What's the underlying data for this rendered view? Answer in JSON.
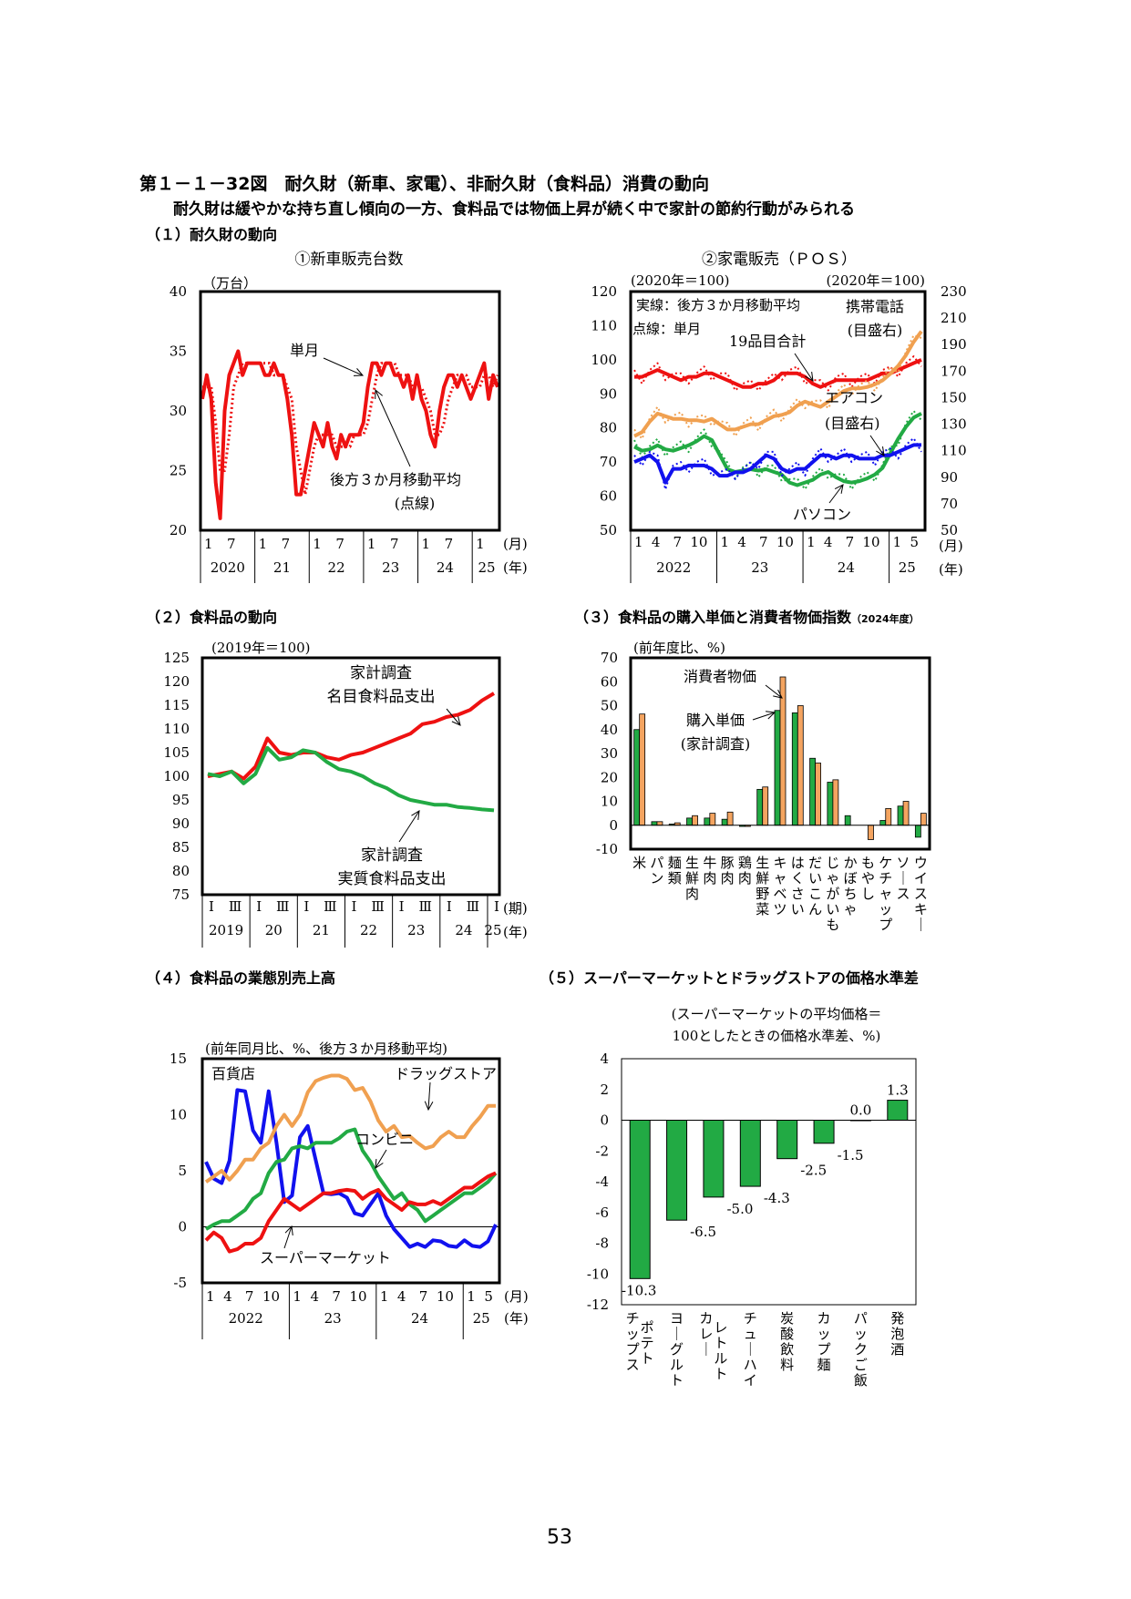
{
  "header": {
    "title": "第１－１－32図　耐久財（新車、家電）、非耐久財（食料品）消費の動向",
    "subtitle": "耐久財は緩やかな持ち直し傾向の一方、食料品では物価上昇が続く中で家計の節約行動がみられる",
    "sec1": "（１）耐久財の動向",
    "sec2": "（２）食料品の動向",
    "sec3": "（３）食料品の購入単価と消費者物価指数",
    "sec3_note": "（2024年度）",
    "sec4": "（４）食料品の業態別売上高",
    "sec5": "（５）スーパーマーケットとドラッグストアの価格水準差"
  },
  "page_number": "53",
  "chart_data": [
    {
      "id": "new-car-sales",
      "type": "line",
      "title": "①新車販売台数",
      "unit": "（万台）",
      "ylim": [
        20,
        40
      ],
      "yticks": [
        20,
        25,
        30,
        35,
        40
      ],
      "month_labels": [
        "1",
        "7",
        "1",
        "7",
        "1",
        "7",
        "1",
        "7",
        "1",
        "7",
        "1"
      ],
      "year_labels": [
        "2020",
        "21",
        "22",
        "23",
        "24",
        "25"
      ],
      "month_unit": "(月)",
      "year_unit": "(年)",
      "annotations": [
        "単月",
        "後方３か月移動平均",
        "(点線)"
      ],
      "series": [
        {
          "color": "#ee1111",
          "style": "solid",
          "values": [
            31,
            33,
            31,
            24,
            21,
            30,
            33,
            34,
            35,
            33,
            34,
            34,
            34,
            34,
            33,
            33,
            34,
            33,
            33,
            31,
            28,
            23,
            23,
            25,
            27,
            29,
            28,
            27,
            29,
            27,
            26,
            28,
            27,
            28,
            28,
            28,
            29,
            32,
            34,
            34,
            33,
            34,
            34,
            33,
            33,
            32,
            33,
            31,
            33,
            31,
            30,
            28,
            27,
            30,
            32,
            33,
            33,
            32,
            33,
            32,
            31,
            32,
            33,
            34,
            31,
            33,
            32
          ]
        },
        {
          "color": "#ee1111",
          "style": "dotted",
          "values": [
            32,
            32,
            32,
            29,
            25,
            25,
            28,
            32,
            33,
            34,
            34,
            34,
            34,
            34,
            34,
            34,
            33,
            33,
            33,
            32,
            31,
            27,
            25,
            23,
            25,
            27,
            28,
            28,
            28,
            28,
            27,
            27,
            27,
            27,
            28,
            28,
            28,
            29,
            31,
            33,
            34,
            34,
            34,
            34,
            33,
            33,
            33,
            32,
            32,
            32,
            31,
            30,
            28,
            28,
            29,
            31,
            32,
            33,
            33,
            33,
            32,
            32,
            32,
            33,
            33,
            32,
            33
          ]
        }
      ]
    },
    {
      "id": "appliance-sales",
      "type": "line",
      "title": "②家電販売（ＰＯＳ）",
      "left_unit": "(2020年＝100)",
      "right_unit": "(2020年＝100)",
      "ylim": [
        50,
        120
      ],
      "yticks": [
        50,
        60,
        70,
        80,
        90,
        100,
        110,
        120
      ],
      "y2lim": [
        50,
        230
      ],
      "y2ticks": [
        50,
        70,
        90,
        110,
        130,
        150,
        170,
        190,
        210,
        230
      ],
      "month_labels": [
        "1",
        "4",
        "7",
        "10",
        "1",
        "4",
        "7",
        "10",
        "1",
        "4",
        "7",
        "10",
        "1",
        "5"
      ],
      "year_labels": [
        "2022",
        "23",
        "24",
        "25"
      ],
      "month_unit": "(月)",
      "year_unit": "(年)",
      "annotations": [
        "実線：後方３か月移動平均",
        "点線：単月",
        "携帯電話",
        "(目盛右)",
        "19品目合計",
        "エアコン",
        "(目盛右)",
        "パソコン"
      ],
      "series": [
        {
          "name": "19品目合計",
          "color": "#ee1111",
          "axis": "left",
          "values": [
            95,
            95,
            96,
            97,
            96,
            95,
            94,
            95,
            95,
            96,
            96,
            95,
            94,
            93,
            92,
            92,
            93,
            93,
            94,
            96,
            96,
            96,
            95,
            93,
            92,
            93,
            94,
            94,
            94,
            94,
            94,
            95,
            96,
            96,
            97,
            98,
            99,
            100
          ]
        },
        {
          "name": "携帯電話",
          "color": "#f0a050",
          "axis": "right",
          "values": [
            121,
            124,
            132,
            138,
            136,
            134,
            134,
            133,
            133,
            132,
            134,
            130,
            126,
            126,
            128,
            130,
            130,
            133,
            136,
            137,
            139,
            144,
            147,
            145,
            143,
            147,
            151,
            155,
            157,
            157,
            158,
            160,
            163,
            168,
            174,
            182,
            192,
            200
          ]
        },
        {
          "name": "エアコン",
          "color": "#22aa44",
          "axis": "right",
          "values": [
            113,
            110,
            111,
            114,
            111,
            110,
            112,
            114,
            117,
            121,
            118,
            107,
            96,
            94,
            95,
            96,
            95,
            96,
            94,
            92,
            86,
            84,
            86,
            88,
            92,
            94,
            90,
            87,
            86,
            87,
            89,
            92,
            97,
            108,
            119,
            128,
            135,
            138
          ]
        },
        {
          "name": "パソコン",
          "color": "#1111ee",
          "axis": "left",
          "values": [
            70,
            71,
            72,
            70,
            64,
            68,
            68,
            69,
            69,
            69,
            68,
            66,
            66,
            67,
            67,
            68,
            70,
            72,
            71,
            68,
            67,
            68,
            68,
            70,
            72,
            72,
            71,
            72,
            72,
            71,
            71,
            71,
            72,
            72,
            73,
            74,
            75,
            75
          ]
        }
      ]
    },
    {
      "id": "food-spending",
      "type": "line",
      "unit": "(2019年＝100)",
      "ylim": [
        75,
        125
      ],
      "yticks": [
        75,
        80,
        85,
        90,
        95,
        100,
        105,
        110,
        115,
        120,
        125
      ],
      "quarter_labels": [
        "Ⅰ",
        "Ⅲ",
        "Ⅰ",
        "Ⅲ",
        "Ⅰ",
        "Ⅲ",
        "Ⅰ",
        "Ⅲ",
        "Ⅰ",
        "Ⅲ",
        "Ⅰ",
        "Ⅲ",
        "Ⅰ"
      ],
      "year_labels": [
        "2019",
        "20",
        "21",
        "22",
        "23",
        "24",
        "25"
      ],
      "quarter_unit": "(期)",
      "year_unit": "(年)",
      "series": [
        {
          "name": "家計調査 名目食料品支出",
          "color": "#ee1111",
          "values": [
            100,
            100.5,
            101,
            99.5,
            102,
            108,
            105,
            104.5,
            105,
            105,
            104,
            103.5,
            104.5,
            105,
            106,
            107,
            108,
            109,
            111,
            111.5,
            112.5,
            113,
            114,
            116,
            117.5
          ]
        },
        {
          "name": "家計調査 実質食料品支出",
          "color": "#22aa44",
          "values": [
            100.5,
            100,
            101,
            98.5,
            100.5,
            106,
            103.5,
            104,
            105.5,
            105,
            103,
            101.5,
            101,
            100,
            98.5,
            97.5,
            96,
            95,
            94.5,
            94,
            94,
            93.5,
            93.3,
            93,
            92.8
          ]
        }
      ],
      "labels": {
        "nominal": [
          "家計調査",
          "名目食料品支出"
        ],
        "real": [
          "家計調査",
          "実質食料品支出"
        ]
      }
    },
    {
      "id": "food-price-cpi",
      "type": "bar",
      "unit": "(前年度比、%)",
      "ylim": [
        -10,
        70
      ],
      "yticks": [
        -10,
        0,
        10,
        20,
        30,
        40,
        50,
        60,
        70
      ],
      "categories": [
        "米",
        "パン",
        "麺類",
        "生鮮肉",
        "牛肉",
        "豚肉",
        "鶏肉",
        "生鮮野菜",
        "キャベツ",
        "はくさい",
        "だいこん",
        "じゃがいも",
        "かぼちゃ",
        "もやし",
        "ケチャップ",
        "ソース",
        "ウイスキー"
      ],
      "series": [
        {
          "name": "購入単価(家計調査)",
          "color": "#22aa44",
          "values": [
            40,
            1.5,
            0.5,
            3,
            3,
            2.5,
            -0.5,
            15,
            48,
            47,
            28,
            18,
            4,
            0,
            2,
            8,
            -5
          ]
        },
        {
          "name": "消費者物価",
          "color": "#f4a460",
          "values": [
            46.5,
            1.5,
            1,
            4,
            5,
            5.5,
            -0.5,
            16,
            62,
            50,
            26,
            19,
            0,
            -6,
            7,
            10,
            5
          ]
        }
      ],
      "annotations": [
        "消費者物価",
        "購入単価",
        "(家計調査)"
      ]
    },
    {
      "id": "food-sales-by-format",
      "type": "line",
      "unit": "(前年同月比、%、後方３か月移動平均)",
      "ylim": [
        -5,
        15
      ],
      "yticks": [
        -5,
        0,
        5,
        10,
        15
      ],
      "month_labels": [
        "1",
        "4",
        "7",
        "10",
        "1",
        "4",
        "7",
        "10",
        "1",
        "4",
        "7",
        "10",
        "1",
        "5"
      ],
      "year_labels": [
        "2022",
        "23",
        "24",
        "25"
      ],
      "month_unit": "(月)",
      "year_unit": "(年)",
      "series": [
        {
          "name": "百貨店",
          "color": "#1111ee",
          "values": [
            5.8,
            4.3,
            3.9,
            5.9,
            12.2,
            12.1,
            8.6,
            7.5,
            12.1,
            7.5,
            2.2,
            2.8,
            8,
            9,
            6,
            3,
            2.9,
            3,
            2.6,
            1.2,
            1,
            2,
            3,
            1,
            -0.2,
            -1,
            -1.8,
            -1.5,
            -1.8,
            -1.2,
            -1.3,
            -1.7,
            -1.8,
            -1.2,
            -1.7,
            -1.8,
            -1.3,
            0.2
          ]
        },
        {
          "name": "ドラッグストア",
          "color": "#f0a050",
          "values": [
            4,
            4.5,
            5,
            4.2,
            5,
            6,
            6,
            7,
            7.5,
            9,
            10,
            9,
            10,
            12,
            13,
            13.3,
            13.5,
            13.5,
            13.2,
            12.2,
            12.4,
            11.2,
            9.5,
            8.5,
            9,
            8,
            8.1,
            7.5,
            7,
            7.2,
            8,
            8.5,
            8,
            8,
            9,
            9.8,
            10.8,
            10.8
          ]
        },
        {
          "name": "コンビニ",
          "color": "#22aa44",
          "values": [
            -0.2,
            0.2,
            0.5,
            0.5,
            1,
            1.5,
            2.5,
            3,
            4.8,
            5.8,
            6,
            7,
            7.2,
            7,
            7.5,
            7.5,
            7.5,
            7.9,
            8.5,
            8.7,
            6.8,
            5.8,
            4.5,
            3.5,
            2.5,
            3,
            2,
            1.5,
            0.5,
            1,
            1.5,
            2,
            2.5,
            3,
            3,
            3.5,
            4,
            4.8
          ]
        },
        {
          "name": "スーパーマーケット",
          "color": "#ee1111",
          "values": [
            -1.2,
            -0.5,
            -1,
            -2.2,
            -2,
            -1.5,
            -1.5,
            -1,
            0.5,
            1.5,
            2.5,
            2,
            1.5,
            2,
            2.5,
            3,
            3,
            3.2,
            3.3,
            3.2,
            2.5,
            3,
            3.3,
            2.5,
            2,
            1.5,
            2.2,
            2,
            2,
            2.3,
            2,
            2.5,
            3,
            3.5,
            3.5,
            4,
            4.5,
            4.8
          ]
        }
      ]
    },
    {
      "id": "price-gap",
      "type": "bar",
      "unit_lines": [
        "(スーパーマーケットの平均価格＝",
        "100としたときの価格水準差、%)"
      ],
      "ylim": [
        -12,
        4
      ],
      "yticks": [
        -12,
        -10,
        -8,
        -6,
        -4,
        -2,
        0,
        2,
        4
      ],
      "categories": [
        "ポテトチップス",
        "ヨーグルト",
        "カレールト",
        "チューハイ",
        "炭酸飲料",
        "カップ麺",
        "パックご飯",
        "発泡酒"
      ],
      "category_lines": [
        [
          "ポテト",
          "チップス"
        ],
        [
          "ヨーグルト"
        ],
        [
          "レトルト",
          "カレー"
        ],
        [
          "チューハイ"
        ],
        [
          "炭酸飲料"
        ],
        [
          "カップ麺"
        ],
        [
          "パックご飯"
        ],
        [
          "発泡酒"
        ]
      ],
      "values": [
        -10.3,
        -6.5,
        -5.0,
        -4.3,
        -2.5,
        -1.5,
        0.0,
        1.3
      ],
      "value_labels": [
        "-10.3",
        "-6.5",
        "-5.0",
        "-4.3",
        "-2.5",
        "-1.5",
        "0.0",
        "1.3"
      ],
      "color": "#22aa44"
    }
  ]
}
